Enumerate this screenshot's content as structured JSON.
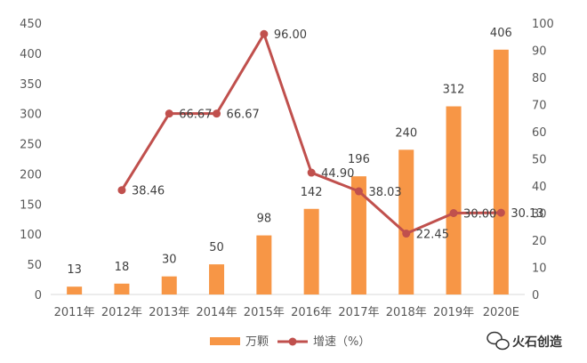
{
  "chart_data": {
    "type": "bar+line",
    "categories": [
      "2011年",
      "2012年",
      "2013年",
      "2014年",
      "2015年",
      "2016年",
      "2017年",
      "2018年",
      "2019年",
      "2020E"
    ],
    "series": [
      {
        "name": "万颗",
        "type": "bar",
        "axis": "left",
        "color": "#F79646",
        "values": [
          13,
          18,
          30,
          50,
          98,
          142,
          196,
          240,
          312,
          406
        ],
        "labels": [
          "13",
          "18",
          "30",
          "50",
          "98",
          "142",
          "196",
          "240",
          "312",
          "406"
        ]
      },
      {
        "name": "增速（%）",
        "type": "line",
        "axis": "right",
        "color": "#C0504D",
        "values": [
          null,
          38.46,
          66.67,
          66.67,
          96.0,
          44.9,
          38.03,
          22.45,
          30.0,
          30.13
        ],
        "labels": [
          "",
          "38.46",
          "66.67",
          "66.67",
          "96.00",
          "44.90",
          "38.03",
          "22.45",
          "30.00",
          "30.13"
        ]
      }
    ],
    "left_axis": {
      "min": 0,
      "max": 450,
      "ticks": [
        "0",
        "50",
        "100",
        "150",
        "200",
        "250",
        "300",
        "350",
        "400",
        "450"
      ]
    },
    "right_axis": {
      "min": 0,
      "max": 100,
      "ticks": [
        "0",
        "10",
        "20",
        "30",
        "40",
        "50",
        "60",
        "70",
        "80",
        "90",
        "100"
      ]
    },
    "grid": false,
    "legend_position": "bottom"
  },
  "watermark": {
    "text": "火石创造",
    "icon": "wechat-icon"
  }
}
